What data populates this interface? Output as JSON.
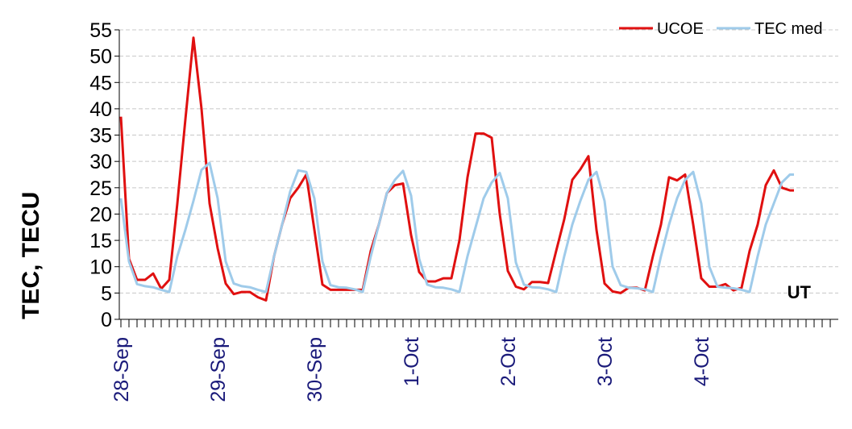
{
  "chart_data": {
    "type": "line",
    "ylabel": "TEC, TECU",
    "xlabel": "UT",
    "ylim": [
      0,
      55
    ],
    "yticks": [
      0,
      5,
      10,
      15,
      20,
      25,
      30,
      35,
      40,
      45,
      50,
      55
    ],
    "grid": true,
    "legend_position": "top-right",
    "day_labels": [
      "28-Sep",
      "29-Sep",
      "30-Sep",
      "1-Oct",
      "2-Oct",
      "3-Oct",
      "4-Oct"
    ],
    "x_unit": "hours UT from 28-Sep 00:00",
    "x_max": 168,
    "series": [
      {
        "name": "UCOE",
        "color": "#e01010",
        "x": [
          0,
          2,
          4,
          6,
          8,
          10,
          12,
          14,
          16,
          18,
          20,
          22,
          24,
          26,
          28,
          30,
          32,
          34,
          36,
          38,
          40,
          42,
          44,
          46,
          48,
          50,
          52,
          54,
          56,
          58,
          60,
          62,
          64,
          66,
          68,
          70,
          72,
          74,
          76,
          78,
          80,
          82,
          84,
          86,
          88,
          90,
          92,
          94,
          96,
          98,
          100,
          102,
          104,
          106,
          108,
          110,
          112,
          114,
          116,
          118,
          120,
          122,
          124,
          126,
          128,
          130,
          132,
          134,
          136,
          138,
          140,
          142,
          144,
          146,
          148,
          150,
          152,
          154,
          156,
          158,
          160,
          162,
          164,
          166
        ],
        "y": [
          38.5,
          11.5,
          7.5,
          7.5,
          8.7,
          5.8,
          7.5,
          22,
          38,
          53.5,
          40,
          22,
          13.5,
          6.8,
          4.8,
          5.2,
          5.2,
          4.2,
          3.6,
          12,
          18,
          23,
          25,
          27.5,
          17,
          6.6,
          5.6,
          5.6,
          5.6,
          5.6,
          5.6,
          13,
          18,
          24,
          25.5,
          25.8,
          16,
          9,
          7.2,
          7.2,
          7.8,
          7.8,
          15,
          27,
          35.3,
          35.3,
          34.5,
          20,
          9.2,
          6.2,
          5.7,
          7.1,
          7.1,
          6.9,
          13,
          19,
          26.5,
          28.5,
          31,
          17,
          6.8,
          5.3,
          5,
          6,
          6,
          5.5,
          12,
          18,
          27,
          26.4,
          27.5,
          18,
          7.8,
          6.2,
          6.2,
          6.7,
          5.5,
          6,
          13,
          18,
          25.5,
          28.3,
          25,
          24.5
        ],
        "x_end": 167,
        "y_end": 24.5
      },
      {
        "name": "TEC med",
        "color": "#9fcbea",
        "x": [
          0,
          2,
          4,
          6,
          8,
          10,
          12,
          14,
          16,
          18,
          20,
          22,
          24,
          26,
          28,
          30,
          32,
          34,
          36,
          38,
          40,
          42,
          44,
          46,
          48,
          50,
          52,
          54,
          56,
          58,
          60,
          62,
          64,
          66,
          68,
          70,
          72,
          74,
          76,
          78,
          80,
          82,
          84,
          86,
          88,
          90,
          92,
          94,
          96,
          98,
          100,
          102,
          104,
          106,
          108,
          110,
          112,
          114,
          116,
          118,
          120,
          122,
          124,
          126,
          128,
          130,
          132,
          134,
          136,
          138,
          140,
          142,
          144,
          146,
          148,
          150,
          152,
          154,
          156,
          158,
          160,
          162,
          164,
          166
        ],
        "y": [
          23,
          11,
          6.7,
          6.3,
          6.1,
          5.6,
          5.2,
          12,
          17,
          22.5,
          28.4,
          29.7,
          23,
          11,
          6.8,
          6.3,
          6.1,
          5.6,
          5.2,
          12,
          18,
          24.3,
          28.3,
          28,
          23,
          11,
          6.5,
          6.1,
          6,
          5.7,
          5.2,
          12,
          18,
          24,
          26.5,
          28.2,
          23.5,
          11.5,
          6.6,
          6.1,
          6,
          5.7,
          5.2,
          12,
          17.5,
          23,
          26,
          27.8,
          23,
          10.8,
          6.6,
          6.1,
          6,
          5.7,
          5.2,
          12,
          18,
          22.5,
          26.5,
          28,
          22.5,
          10,
          6.5,
          6,
          5.9,
          5.7,
          5.2,
          12,
          18,
          23,
          26.5,
          28,
          22,
          10,
          6.2,
          6,
          5.9,
          5.6,
          5.2,
          12,
          18,
          22,
          26,
          27.5
        ],
        "x_end": 167,
        "y_end": 27.5
      }
    ]
  }
}
